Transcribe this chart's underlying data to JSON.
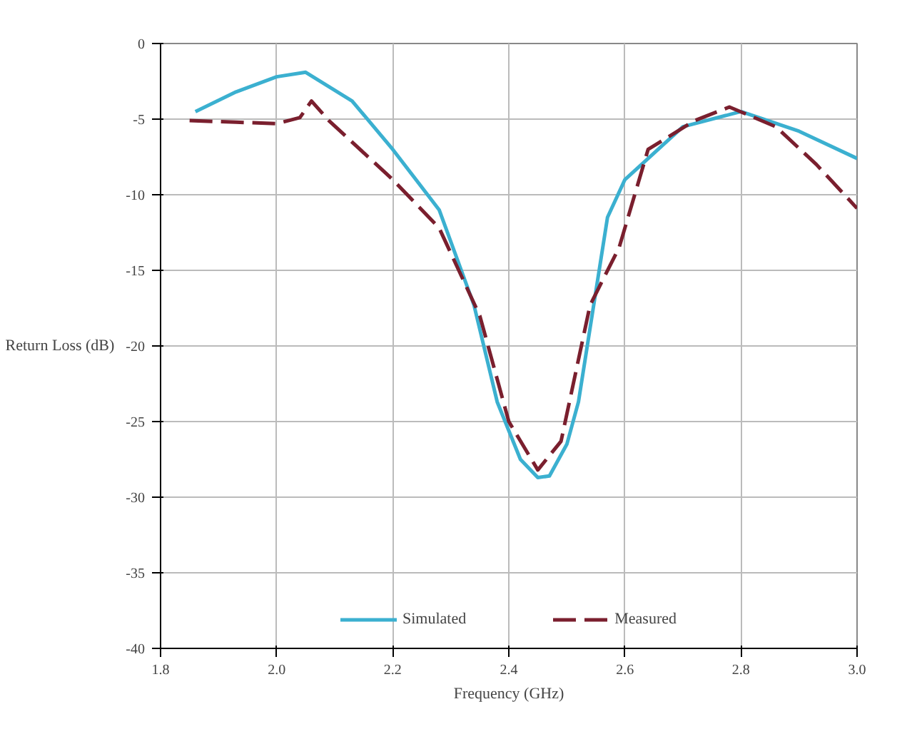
{
  "chart_data": {
    "type": "line",
    "xlabel": "Frequency (GHz)",
    "ylabel": "Return Loss (dB)",
    "xlim": [
      1.8,
      3.0
    ],
    "ylim": [
      -40,
      0
    ],
    "xticks": [
      1.8,
      {
        "value": 2.0,
        "label": "2.0"
      },
      2.2,
      2.4,
      2.6,
      2.8,
      {
        "value": 3.0,
        "label": "3.0"
      }
    ],
    "yticks": [
      0,
      -5,
      -10,
      -15,
      -20,
      -25,
      -30,
      -35,
      -40
    ],
    "grid": true,
    "legend": "bottom",
    "series": [
      {
        "name": "Simulated",
        "color": "#3bb0d0",
        "line_style": "solid",
        "x": [
          1.86,
          1.93,
          2.0,
          2.05,
          2.13,
          2.2,
          2.28,
          2.34,
          2.38,
          2.42,
          2.45,
          2.47,
          2.5,
          2.52,
          2.57,
          2.6,
          2.7,
          2.8,
          2.9,
          3.0
        ],
        "values": [
          -4.5,
          -3.2,
          -2.2,
          -1.9,
          -3.8,
          -7,
          -11,
          -17.3,
          -23.7,
          -27.5,
          -28.7,
          -28.6,
          -26.5,
          -23.7,
          -11.5,
          -9,
          -5.5,
          -4.5,
          -5.8,
          -7.6
        ]
      },
      {
        "name": "Measured",
        "color": "#7a1f2e",
        "line_style": "dashed",
        "x": [
          1.85,
          1.93,
          2.0,
          2.04,
          2.06,
          2.09,
          2.2,
          2.28,
          2.35,
          2.4,
          2.45,
          2.49,
          2.54,
          2.59,
          2.64,
          2.72,
          2.78,
          2.86,
          2.93,
          3.0
        ],
        "values": [
          -5.1,
          -5.2,
          -5.3,
          -4.9,
          -3.8,
          -5.1,
          -9,
          -12.2,
          -18,
          -25,
          -28.2,
          -26.3,
          -17.3,
          -13.5,
          -7,
          -5.1,
          -4.2,
          -5.5,
          -8,
          -10.9
        ]
      }
    ]
  }
}
